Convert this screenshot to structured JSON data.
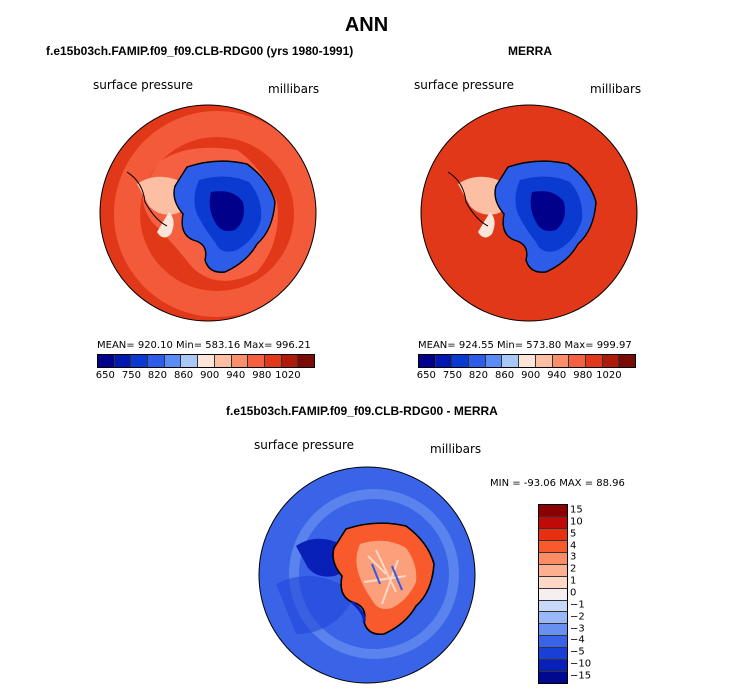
{
  "title": "ANN",
  "panels": [
    {
      "title": "f.e15b03ch.FAMIP.f09_f09.CLB-RDG00 (yrs 1980-1991)",
      "variable": "surface pressure",
      "units": "millibars",
      "stats": "MEAN= 920.10   Min= 583.16   Max= 996.21"
    },
    {
      "title": "MERRA",
      "variable": "surface pressure",
      "units": "millibars",
      "stats": "MEAN= 924.55   Min= 573.80   Max= 999.97"
    },
    {
      "title": "f.e15b03ch.FAMIP.f09_f09.CLB-RDG00 - MERRA",
      "variable": "surface pressure",
      "units": "millibars",
      "stats": "MIN = -93.06  MAX =  88.96"
    }
  ],
  "colorbar_top": {
    "colors": [
      "#00008b",
      "#0018b0",
      "#0a3ad0",
      "#2c5ce8",
      "#5a8cf8",
      "#a8c8f8",
      "#fbe5d8",
      "#fcbfa4",
      "#fb8f6c",
      "#f46040",
      "#e03818",
      "#b01a0a",
      "#7a0a04"
    ],
    "labels": [
      "650",
      "750",
      "820",
      "860",
      "900",
      "940",
      "980",
      "1020"
    ]
  },
  "colorbar_diff": {
    "colors": [
      "#8b0000",
      "#c00a08",
      "#e83010",
      "#f85a2c",
      "#fb8c64",
      "#fcb090",
      "#fdd8c4",
      "#f4f0f0",
      "#c8d8f8",
      "#98b8f8",
      "#6890f0",
      "#3a64e8",
      "#1a3ed8",
      "#0820b8",
      "#000890"
    ],
    "labels": [
      "15",
      "10",
      "5",
      "4",
      "3",
      "2",
      "1",
      "0",
      "−1",
      "−2",
      "−3",
      "−4",
      "−5",
      "−10",
      "−15"
    ]
  }
}
